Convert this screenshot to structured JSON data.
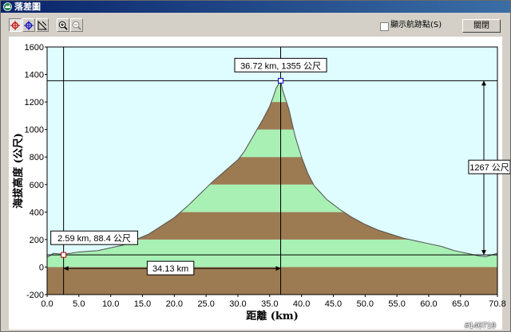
{
  "window": {
    "title": "落差圖"
  },
  "toolbar": {
    "buttons": [
      {
        "name": "crosshair-red-tool",
        "color": "#c00000",
        "pressed": true
      },
      {
        "name": "crosshair-blue-tool",
        "color": "#0000c0",
        "pressed": false
      },
      {
        "name": "measure-tool",
        "color": "#000000",
        "pressed": false
      },
      {
        "name": "zoom-in-tool",
        "color": "#000000",
        "pressed": false
      },
      {
        "name": "zoom-out-tool",
        "color": "#808080",
        "pressed": false
      }
    ],
    "show_waypoints_label": "顯示航跡點(S)",
    "show_waypoints_checked": false,
    "close_label": "關閉"
  },
  "chart_data": {
    "type": "area",
    "xlabel": "距離 (km)",
    "ylabel": "海拔高度 (公尺)",
    "xlim": [
      0.0,
      70.8
    ],
    "ylim": [
      -200,
      1600
    ],
    "xticks": [
      "0.0",
      "5.0",
      "10.0",
      "15.0",
      "20.0",
      "25.0",
      "30.0",
      "35.0",
      "40.0",
      "45.0",
      "50.0",
      "55.0",
      "60.0",
      "65.0",
      "70.8"
    ],
    "yticks": [
      "-200",
      "0",
      "200",
      "400",
      "600",
      "800",
      "1000",
      "1200",
      "1400",
      "1600"
    ],
    "band_colors": [
      "#9c7a52",
      "#a8f0b4"
    ],
    "background": "#dffcff",
    "profile": {
      "x": [
        0,
        1,
        2,
        2.59,
        3,
        5,
        8,
        10,
        12,
        14,
        16,
        18,
        20,
        22,
        24,
        26,
        28,
        30,
        31,
        32,
        33,
        34,
        35,
        35.5,
        36,
        36.72,
        37,
        38,
        39,
        40,
        41,
        42,
        43,
        44,
        46,
        48,
        50,
        52,
        54,
        56,
        58,
        60,
        62,
        64,
        65,
        66,
        67,
        68,
        69,
        70,
        70.8
      ],
      "y": [
        70,
        100,
        95,
        88,
        95,
        110,
        120,
        140,
        160,
        200,
        240,
        300,
        360,
        440,
        530,
        620,
        700,
        780,
        840,
        920,
        1000,
        1080,
        1170,
        1230,
        1300,
        1355,
        1290,
        1150,
        950,
        800,
        680,
        590,
        540,
        490,
        420,
        360,
        310,
        270,
        240,
        210,
        190,
        170,
        150,
        120,
        110,
        100,
        90,
        80,
        75,
        90,
        100
      ]
    },
    "annotations": {
      "start_point_label": "2.59 km, 88.4 公尺",
      "start_point": {
        "x": 2.59,
        "y": 88.4
      },
      "peak_point_label": "36.72 km, 1355 公尺",
      "peak_point": {
        "x": 36.72,
        "y": 1355
      },
      "distance_label": "34.13 km",
      "elevation_diff_label": "1267 公尺"
    }
  },
  "watermark": "#140719"
}
